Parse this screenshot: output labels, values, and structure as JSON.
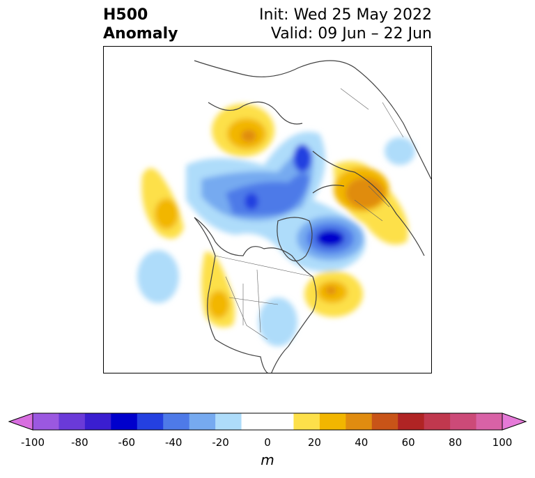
{
  "title": {
    "line1": "H500",
    "line2": "Anomaly",
    "init": "Init: Wed 25 May 2022",
    "valid": "Valid: 09 Jun – 22 Jun"
  },
  "colorbar": {
    "unit": "m",
    "ticks": [
      "-100",
      "-80",
      "-60",
      "-40",
      "-20",
      "0",
      "20",
      "40",
      "60",
      "80",
      "100"
    ],
    "colors": [
      "#d86ee0",
      "#9b58e0",
      "#6a3ad8",
      "#3a1ed0",
      "#0000cc",
      "#2440e0",
      "#4e7ae8",
      "#76aaf0",
      "#aedcfa",
      "#ffffff",
      "#ffffff",
      "#fde04a",
      "#f2b600",
      "#e08c10",
      "#c85418",
      "#b02424",
      "#c0384e",
      "#cc4a78",
      "#d862a6",
      "#e57ad8"
    ]
  },
  "map": {
    "projection": "polar stereographic",
    "region": "North America / Northern Hemisphere"
  }
}
